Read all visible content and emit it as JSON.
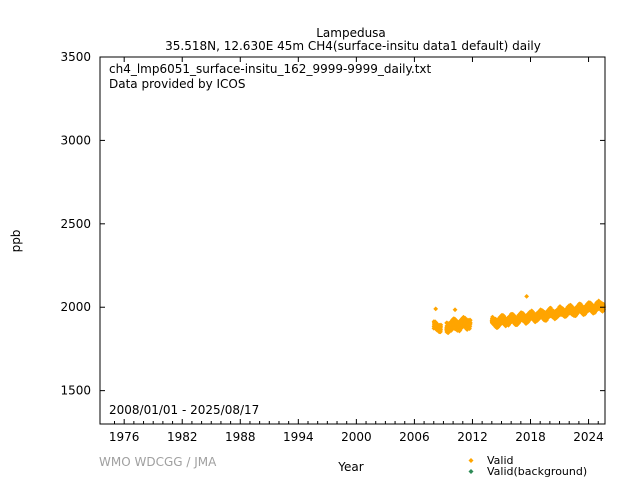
{
  "chart_data": {
    "type": "scatter",
    "title": "Lampedusa",
    "subtitle": "35.518N, 12.630E 45m    CH4(surface-insitu data1 default) daily",
    "annotations": [
      "ch4_lmp6051_surface-insitu_162_9999-9999_daily.txt",
      "Data provided by ICOS"
    ],
    "period_label": "2008/01/01 - 2025/08/17",
    "xlabel": "Year",
    "ylabel": "ppb",
    "xlim": [
      1973.5,
      2025.7
    ],
    "ylim": [
      1300,
      3500
    ],
    "xticks": [
      1976,
      1982,
      1988,
      1994,
      2000,
      2006,
      2012,
      2018,
      2024
    ],
    "yticks": [
      1500,
      2000,
      2500,
      3000,
      3500
    ],
    "grid": false,
    "legend_position": "bottom-right",
    "series": [
      {
        "name": "Valid",
        "color": "#ffa500",
        "marker": "diamond",
        "segments": [
          {
            "x0": 2008.0,
            "x1": 2008.75,
            "base0": 1882,
            "base1": 1880,
            "spread": 45
          },
          {
            "x0": 2009.3,
            "x1": 2011.8,
            "base0": 1880,
            "base1": 1905,
            "spread": 60
          },
          {
            "x0": 2014.0,
            "x1": 2025.6,
            "base0": 1905,
            "base1": 2005,
            "spread": 50
          }
        ],
        "highlights": [
          {
            "x": 2008.2,
            "y": 1990
          },
          {
            "x": 2010.2,
            "y": 1985
          },
          {
            "x": 2017.6,
            "y": 2065
          }
        ]
      },
      {
        "name": "Valid(background)",
        "color": "#2e8b57",
        "marker": "diamond",
        "points": []
      }
    ]
  },
  "footer": {
    "credit": "WMO WDCGG / JMA"
  }
}
